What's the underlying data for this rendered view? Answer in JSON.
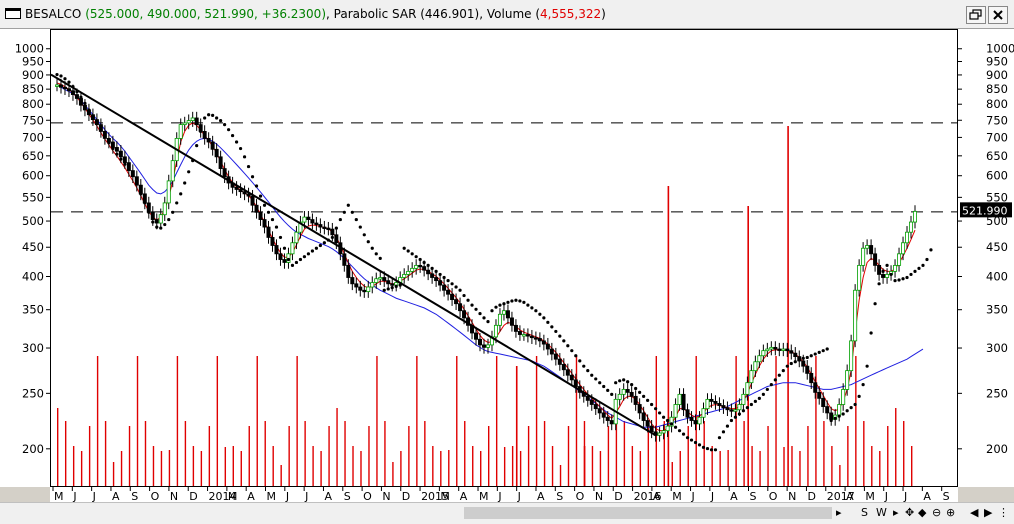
{
  "window": {
    "symbol": "BESALCO",
    "ohlc_change": "(525.000, 490.000, 521.990, +36.2300)",
    "separator": ",",
    "indicator": "Parabolic SAR (446.901)",
    "volume_label": "Volume (",
    "volume_value": "4,555,322",
    "volume_close": ")",
    "restore_icon": "restore-window-icon",
    "close_icon": "close-icon"
  },
  "chart_data": {
    "type": "line",
    "title": "BESALCO",
    "yscale": "log",
    "ylim": [
      180,
      1040
    ],
    "y_ticks": [
      1000,
      950,
      900,
      850,
      800,
      750,
      700,
      650,
      600,
      550,
      500,
      450,
      400,
      350,
      300,
      250,
      200
    ],
    "x_labels": [
      "M",
      "J",
      "J",
      "A",
      "S",
      "O",
      "N",
      "D",
      "2014",
      "M",
      "A",
      "M",
      "J",
      "J",
      "A",
      "S",
      "O",
      "N",
      "D",
      "2015",
      "M",
      "A",
      "M",
      "J",
      "J",
      "A",
      "S",
      "O",
      "N",
      "D",
      "2016",
      "A",
      "M",
      "J",
      "J",
      "A",
      "S",
      "O",
      "N",
      "D",
      "2017",
      "A",
      "M",
      "J",
      "J",
      "A",
      "S"
    ],
    "last_price": "521.990",
    "horizontal_lines": [
      745,
      521
    ],
    "price_weekly": [
      868,
      860,
      855,
      848,
      835,
      822,
      800,
      785,
      770,
      755,
      740,
      720,
      700,
      690,
      675,
      665,
      650,
      635,
      615,
      600,
      580,
      560,
      540,
      520,
      505,
      498,
      515,
      540,
      590,
      640,
      700,
      740,
      745,
      752,
      760,
      740,
      720,
      700,
      690,
      670,
      650,
      620,
      600,
      585,
      575,
      570,
      565,
      560,
      555,
      535,
      520,
      505,
      490,
      470,
      455,
      440,
      430,
      425,
      440,
      460,
      480,
      500,
      510,
      505,
      498,
      495,
      490,
      488,
      486,
      475,
      460,
      440,
      420,
      400,
      390,
      385,
      380,
      378,
      385,
      392,
      398,
      400,
      395,
      390,
      388,
      392,
      400,
      405,
      410,
      415,
      420,
      418,
      412,
      406,
      400,
      395,
      388,
      380,
      374,
      366,
      360,
      350,
      340,
      330,
      320,
      312,
      305,
      302,
      305,
      315,
      330,
      345,
      350,
      340,
      330,
      322,
      318,
      318,
      316,
      314,
      313,
      310,
      306,
      300,
      294,
      288,
      282,
      276,
      270,
      265,
      258,
      252,
      248,
      244,
      240,
      236,
      232,
      228,
      225,
      222,
      245,
      250,
      255,
      252,
      248,
      240,
      232,
      225,
      220,
      215,
      212,
      214,
      216,
      220,
      228,
      240,
      250,
      235,
      228,
      225,
      222,
      228,
      236,
      245,
      243,
      241,
      239,
      237,
      235,
      234,
      235,
      240,
      250,
      262,
      275,
      285,
      292,
      298,
      300,
      302,
      300,
      299,
      300,
      298,
      295,
      291,
      286,
      280,
      272,
      262,
      252,
      246,
      238,
      232,
      226,
      230,
      240,
      255,
      275,
      310,
      380,
      420,
      450,
      455,
      440,
      420,
      405,
      400,
      405,
      410,
      420,
      440,
      460,
      480,
      500,
      522
    ],
    "sma_weekly": [
      870,
      860,
      852,
      845,
      838,
      828,
      815,
      800,
      785,
      770,
      755,
      740,
      725,
      712,
      700,
      690,
      678,
      665,
      650,
      636,
      622,
      608,
      594,
      580,
      570,
      562,
      560,
      565,
      575,
      590,
      610,
      630,
      650,
      668,
      682,
      692,
      698,
      700,
      698,
      692,
      684,
      674,
      663,
      652,
      641,
      630,
      619,
      608,
      597,
      586,
      575,
      564,
      553,
      542,
      531,
      520,
      510,
      501,
      493,
      486,
      480,
      476,
      472,
      468,
      465,
      462,
      459,
      456,
      453,
      449,
      444,
      438,
      432,
      425,
      418,
      411,
      404,
      398,
      393,
      388,
      384,
      380,
      377,
      374,
      371,
      368,
      366,
      364,
      362,
      360,
      358,
      356,
      354,
      351,
      348,
      345,
      341,
      337,
      333,
      329,
      325,
      321,
      317,
      313,
      309,
      305,
      302,
      299,
      297,
      296,
      295,
      294,
      293,
      292,
      291,
      290,
      289,
      288,
      287,
      286,
      284,
      282,
      280,
      277,
      274,
      271,
      268,
      265,
      262,
      259,
      256,
      253,
      250,
      247,
      244,
      241,
      238,
      235,
      232,
      230,
      228,
      226,
      224,
      223,
      222,
      221,
      220,
      219,
      219,
      219,
      219,
      220,
      221,
      222,
      223,
      224,
      225,
      226,
      227,
      228,
      229,
      230,
      231,
      232,
      233,
      234,
      235,
      236,
      238,
      240,
      242,
      244,
      246,
      248,
      250,
      252,
      254,
      256,
      258,
      259,
      260,
      261,
      262,
      262,
      262,
      262,
      261,
      260,
      259,
      258,
      257,
      256,
      255,
      255,
      255,
      256,
      257,
      258,
      259,
      260,
      262,
      264,
      266,
      268,
      270,
      272,
      274,
      276,
      278,
      280,
      282,
      284,
      286,
      288,
      291,
      294,
      297,
      300
    ],
    "ema_weekly": [
      875,
      870,
      862,
      852,
      840,
      826,
      808,
      790,
      772,
      754,
      736,
      716,
      698,
      682,
      666,
      652,
      637,
      622,
      606,
      590,
      574,
      556,
      538,
      522,
      510,
      504,
      510,
      526,
      552,
      590,
      640,
      690,
      720,
      738,
      745,
      738,
      724,
      708,
      694,
      678,
      660,
      638,
      618,
      600,
      586,
      576,
      568,
      562,
      556,
      546,
      532,
      516,
      500,
      484,
      468,
      454,
      442,
      434,
      434,
      442,
      456,
      472,
      486,
      492,
      494,
      493,
      491,
      489,
      487,
      480,
      470,
      456,
      440,
      424,
      410,
      400,
      392,
      386,
      384,
      386,
      390,
      394,
      394,
      392,
      390,
      390,
      394,
      398,
      402,
      407,
      412,
      414,
      413,
      410,
      406,
      402,
      396,
      390,
      383,
      376,
      369,
      361,
      352,
      343,
      334,
      325,
      317,
      311,
      308,
      309,
      314,
      322,
      330,
      334,
      332,
      328,
      324,
      321,
      319,
      317,
      315,
      313,
      310,
      306,
      301,
      296,
      290,
      284,
      278,
      272,
      266,
      260,
      255,
      250,
      246,
      242,
      238,
      234,
      230,
      227,
      232,
      238,
      245,
      248,
      248,
      245,
      240,
      234,
      228,
      222,
      218,
      216,
      216,
      218,
      222,
      228,
      236,
      236,
      233,
      230,
      228,
      229,
      232,
      237,
      239,
      240,
      239,
      238,
      237,
      236,
      236,
      238,
      243,
      251,
      261,
      271,
      280,
      288,
      294,
      298,
      299,
      299,
      299,
      298,
      297,
      294,
      290,
      285,
      279,
      271,
      263,
      256,
      249,
      242,
      236,
      234,
      236,
      243,
      255,
      275,
      320,
      365,
      400,
      425,
      432,
      428,
      420,
      413,
      410,
      410,
      414,
      424,
      436,
      450,
      466,
      484
    ],
    "sar_weekly": [
      905,
      900,
      890,
      878,
      862,
      845,
      826,
      806,
      785,
      764,
      744,
      724,
      705,
      688,
      672,
      657,
      644,
      631,
      620,
      610,
      590,
      560,
      540,
      520,
      500,
      490,
      488,
      495,
      505,
      520,
      540,
      560,
      585,
      612,
      640,
      680,
      720,
      760,
      770,
      768,
      760,
      752,
      740,
      725,
      708,
      690,
      672,
      650,
      625,
      600,
      578,
      555,
      535,
      520,
      505,
      490,
      470,
      450,
      430,
      420,
      425,
      430,
      435,
      440,
      445,
      450,
      455,
      460,
      465,
      470,
      488,
      505,
      520,
      535,
      520,
      505,
      490,
      475,
      462,
      450,
      440,
      432,
      380,
      382,
      384,
      386,
      388,
      450,
      445,
      440,
      435,
      430,
      425,
      420,
      415,
      410,
      405,
      400,
      395,
      390,
      385,
      380,
      372,
      365,
      358,
      352,
      346,
      340,
      335,
      350,
      355,
      358,
      360,
      362,
      364,
      365,
      364,
      362,
      358,
      354,
      350,
      345,
      340,
      334,
      328,
      322,
      316,
      310,
      304,
      298,
      292,
      286,
      280,
      275,
      270,
      266,
      262,
      258,
      254,
      250,
      262,
      264,
      265,
      263,
      260,
      256,
      252,
      248,
      244,
      240,
      236,
      232,
      228,
      225,
      222,
      219,
      216,
      213,
      210,
      208,
      206,
      204,
      202,
      201,
      200,
      200,
      210,
      215,
      220,
      225,
      228,
      231,
      234,
      237,
      240,
      243,
      246,
      250,
      255,
      260,
      265,
      270,
      275,
      280,
      283,
      285,
      287,
      289,
      290,
      292,
      294,
      296,
      298,
      300,
      225,
      227,
      229,
      231,
      234,
      237,
      240,
      248,
      260,
      280,
      320,
      360,
      390,
      410,
      420,
      405,
      395,
      396,
      398,
      400,
      405,
      410,
      415,
      420,
      430,
      447
    ],
    "volume_spikes_x": [
      115,
      132,
      153,
      173,
      183
    ]
  }
}
